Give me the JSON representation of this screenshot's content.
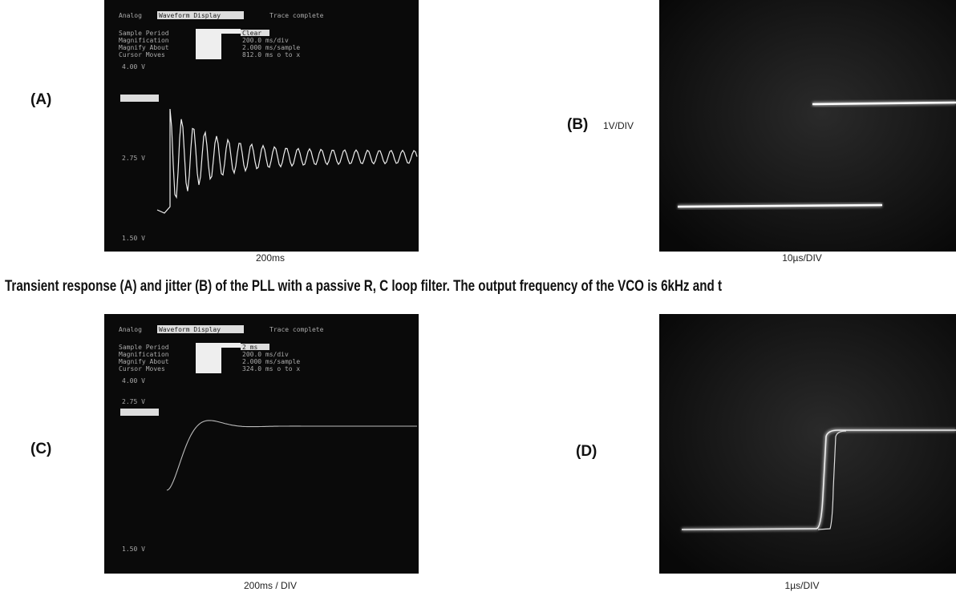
{
  "caption": "Transient response (A) and jitter (B) of the PLL with a passive R, C loop filter. The output frequency of the VCO is 6kHz and t",
  "panels": [
    {
      "label": "(A)",
      "x_scale": "200ms",
      "screen": {
        "header": "Analog",
        "mode": "Waveform Display",
        "status": "Trace complete",
        "rows": [
          [
            "Sample Period",
            "Clear"
          ],
          [
            "Magnification",
            "200.0 ms/div"
          ],
          [
            "Magnify About",
            "2.000 ms/sample"
          ],
          [
            "Cursor Moves",
            "812.0 ms o to x"
          ]
        ],
        "levels": [
          "4.00 V",
          "2.75 V",
          "1.50 V"
        ]
      }
    },
    {
      "label": "(B)",
      "y_scale": "1V/DIV",
      "x_scale": "10µs/DIV"
    },
    {
      "label": "(C)",
      "x_scale": "200ms / DIV",
      "screen": {
        "header": "Analog",
        "mode": "Waveform Display",
        "status": "Trace complete",
        "rows": [
          [
            "Sample Period",
            "2 ms"
          ],
          [
            "Magnification",
            "200.0 ms/div"
          ],
          [
            "Magnify About",
            "2.000 ms/sample"
          ],
          [
            "Cursor Moves",
            "324.0 ms o to x"
          ]
        ],
        "levels": [
          "4.00 V",
          "2.75 V",
          "1.50 V"
        ]
      }
    },
    {
      "label": "(D)",
      "x_scale": "1µs/DIV"
    }
  ]
}
